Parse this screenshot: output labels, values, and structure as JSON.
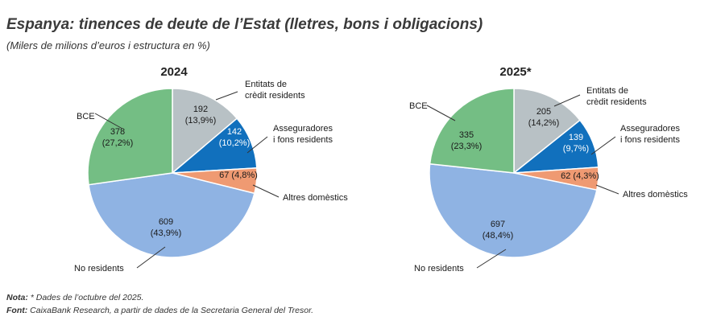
{
  "title": "Espanya: tinences de deute de l’Estat (lletres, bons i obligacions)",
  "subtitle": "(Milers de milions d’euros i estructura en %)",
  "colors": {
    "BCE": "#74be84",
    "credit": "#b8c1c5",
    "asseg": "#1170bd",
    "altres": "#ef9a72",
    "nores": "#8fb3e3"
  },
  "chart_data": [
    {
      "type": "pie",
      "title": "2024",
      "slices": [
        {
          "key": "credit",
          "label": "Entitats de crèdit residents",
          "label_lines": [
            "Entitats de",
            "crèdit residents"
          ],
          "value": 192,
          "value_text": "192",
          "pct_text": "(13,9%)"
        },
        {
          "key": "asseg",
          "label": "Asseguradores i fons residents",
          "label_lines": [
            "Asseguradores",
            "i fons residents"
          ],
          "value": 142,
          "value_text": "142",
          "pct_text": "(10,2%)"
        },
        {
          "key": "altres",
          "label": "Altres domèstics",
          "label_lines": [
            "Altres domèstics"
          ],
          "value": 67,
          "value_text": "67 (4,8%)",
          "pct_text": ""
        },
        {
          "key": "nores",
          "label": "No residents",
          "label_lines": [
            "No residents"
          ],
          "value": 609,
          "value_text": "609",
          "pct_text": "(43,9%)"
        },
        {
          "key": "BCE",
          "label": "BCE",
          "label_lines": [
            "BCE"
          ],
          "value": 378,
          "value_text": "378",
          "pct_text": "(27,2%)"
        }
      ]
    },
    {
      "type": "pie",
      "title": "2025*",
      "slices": [
        {
          "key": "credit",
          "label": "Entitats de crèdit residents",
          "label_lines": [
            "Entitats de",
            "crèdit residents"
          ],
          "value": 205,
          "value_text": "205",
          "pct_text": "(14,2%)"
        },
        {
          "key": "asseg",
          "label": "Asseguradores i fons residents",
          "label_lines": [
            "Asseguradores",
            "i fons residents"
          ],
          "value": 139,
          "value_text": "139",
          "pct_text": "(9,7%)"
        },
        {
          "key": "altres",
          "label": "Altres domèstics",
          "label_lines": [
            "Altres domèstics"
          ],
          "value": 62,
          "value_text": "62 (4,3%)",
          "pct_text": ""
        },
        {
          "key": "nores",
          "label": "No residents",
          "label_lines": [
            "No residents"
          ],
          "value": 697,
          "value_text": "697",
          "pct_text": "(48,4%)"
        },
        {
          "key": "BCE",
          "label": "BCE",
          "label_lines": [
            "BCE"
          ],
          "value": 335,
          "value_text": "335",
          "pct_text": "(23,3%)"
        }
      ]
    }
  ],
  "notes": {
    "nota_label": "Nota:",
    "nota_text": " * Dades de l’octubre del 2025.",
    "font_label": "Font:",
    "font_text": " CaixaBank Research, a partir de dades de la Secretaria General del Tresor."
  }
}
